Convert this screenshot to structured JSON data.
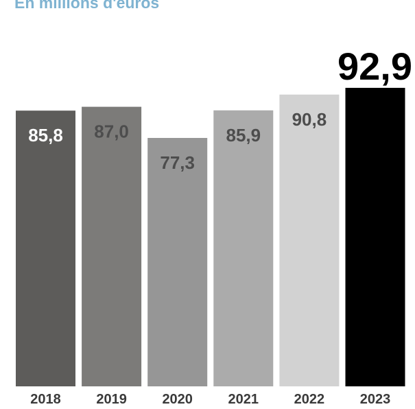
{
  "subtitle": "En millions d'euros",
  "chart_data": {
    "type": "bar",
    "title": "",
    "subtitle": "En millions d'euros",
    "categories": [
      "2018",
      "2019",
      "2020",
      "2021",
      "2022",
      "2023"
    ],
    "values": [
      85.8,
      87.0,
      77.3,
      85.9,
      90.8,
      92.9
    ],
    "value_labels": [
      "85,8",
      "87,0",
      "77,3",
      "85,9",
      "90,8",
      "92,9"
    ],
    "xlabel": "",
    "ylabel": "",
    "colors": {
      "bars": [
        "#5d5c5a",
        "#7c7b79",
        "#969696",
        "#ababab",
        "#d2d2d2",
        "#000000"
      ],
      "labels": [
        "#ffffff",
        "#4d4d4d",
        "#4d4d4d",
        "#4d4d4d",
        "#4d4d4d",
        "#000000"
      ],
      "ticks": "#3a3a3a",
      "subtitle": "#7fb3d1"
    },
    "highlight_last": true,
    "grid": false,
    "legend": "none"
  }
}
